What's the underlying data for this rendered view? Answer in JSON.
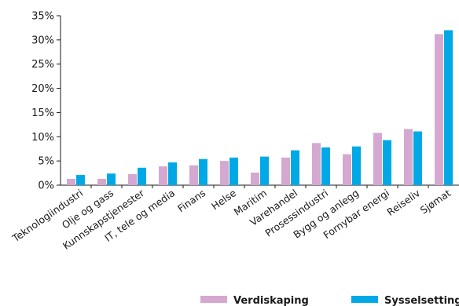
{
  "chart_data": {
    "type": "bar",
    "categories": [
      "Teknologiindustri",
      "Olje og gass",
      "Kunnskapstjenester",
      "IT, tele og media",
      "Finans",
      "Helse",
      "Maritim",
      "Varehandel",
      "Prosessindustri",
      "Bygg og anlegg",
      "Fornybar energi",
      "Reiseliv",
      "Sjømat"
    ],
    "series": [
      {
        "name": "Verdiskaping",
        "color": "#d4a8d0",
        "values": [
          1.3,
          1.3,
          2.3,
          3.9,
          4.1,
          5.0,
          2.6,
          5.7,
          8.7,
          6.4,
          10.8,
          11.6,
          31.2
        ]
      },
      {
        "name": "Sysselsetting",
        "color": "#00a9e6",
        "values": [
          2.1,
          2.4,
          3.6,
          4.7,
          5.4,
          5.7,
          5.9,
          7.2,
          7.8,
          8.0,
          9.3,
          11.1,
          32.0
        ]
      }
    ],
    "yticks": [
      "0%",
      "5%",
      "10%",
      "15%",
      "20%",
      "25%",
      "30%",
      "35%"
    ],
    "ylim": [
      0,
      35
    ],
    "grid": false,
    "legend": "bottom"
  }
}
